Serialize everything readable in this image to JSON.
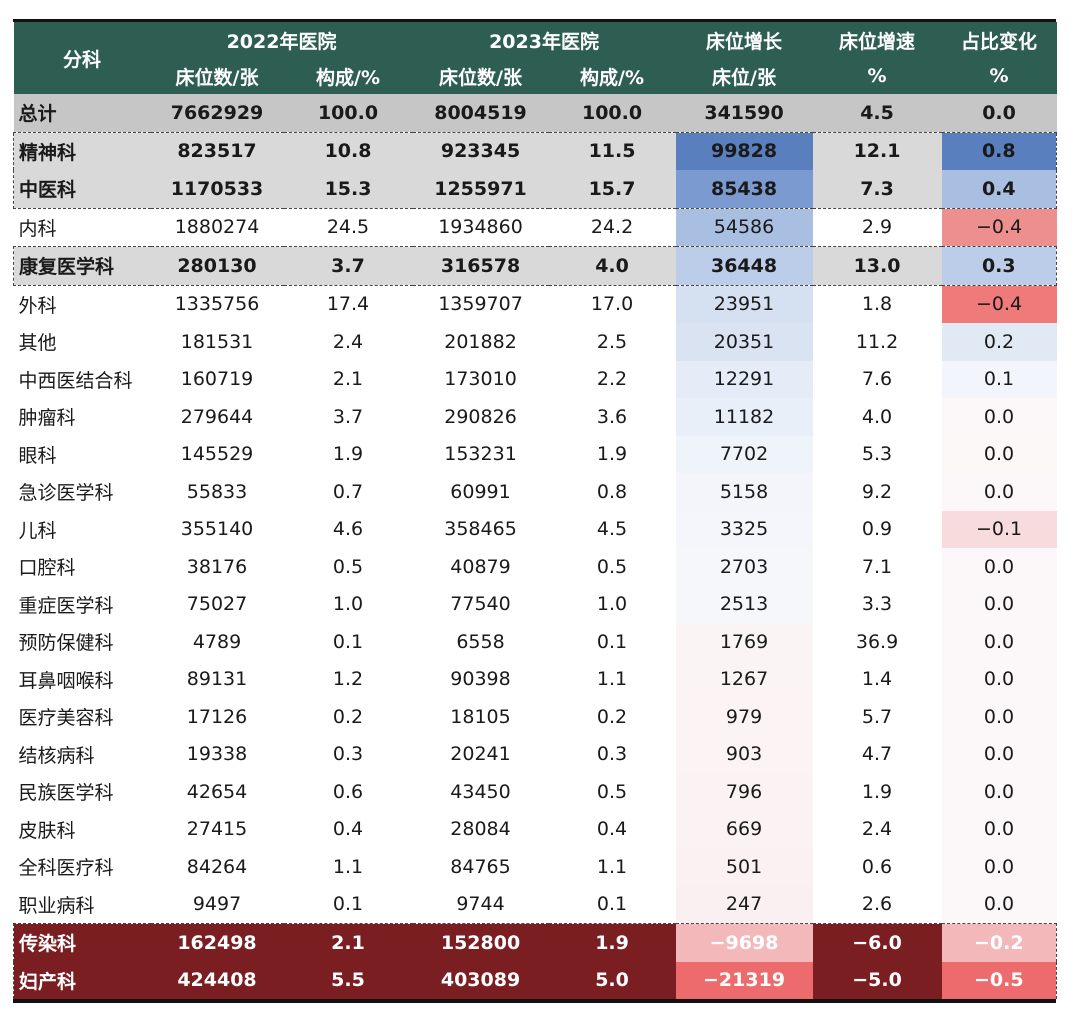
{
  "header": {
    "category": "分科",
    "group_2022": "2022年医院",
    "group_2023": "2023年医院",
    "bed_growth": "床位增长",
    "bed_rate": "床位增速",
    "share_change": "占比变化",
    "sub_beds": "床位数/张",
    "sub_share": "构成/%",
    "sub_bed_unit": "床位/张",
    "sub_pct": "%"
  },
  "rows": [
    {
      "name": "总计",
      "b22": "7662929",
      "s22": "100.0",
      "b23": "8004519",
      "s23": "100.0",
      "growth": "341590",
      "rate": "4.5",
      "change": "0.0",
      "style": "total",
      "growth_color": "#c6c6c6",
      "change_color": "#c6c6c6"
    },
    {
      "name": "精神科",
      "b22": "823517",
      "s22": "10.8",
      "b23": "923345",
      "s23": "11.5",
      "growth": "99828",
      "rate": "12.1",
      "change": "0.8",
      "style": "hl",
      "growth_color": "#5a7fbf",
      "change_color": "#5a7fbf"
    },
    {
      "name": "中医科",
      "b22": "1170533",
      "s22": "15.3",
      "b23": "1255971",
      "s23": "15.7",
      "growth": "85438",
      "rate": "7.3",
      "change": "0.4",
      "style": "hl",
      "growth_color": "#7b9ad0",
      "change_color": "#a9bfe2"
    },
    {
      "name": "内科",
      "b22": "1880274",
      "s22": "24.5",
      "b23": "1934860",
      "s23": "24.2",
      "growth": "54586",
      "rate": "2.9",
      "change": "−0.4",
      "style": "normal",
      "growth_color": "#a9bfe2",
      "change_color": "#ee8f8f"
    },
    {
      "name": "康复医学科",
      "b22": "280130",
      "s22": "3.7",
      "b23": "316578",
      "s23": "4.0",
      "growth": "36448",
      "rate": "13.0",
      "change": "0.3",
      "style": "hl",
      "growth_color": "#bccde9",
      "change_color": "#bccde9"
    },
    {
      "name": "外科",
      "b22": "1335756",
      "s22": "17.4",
      "b23": "1359707",
      "s23": "17.0",
      "growth": "23951",
      "rate": "1.8",
      "change": "−0.4",
      "style": "normal",
      "growth_color": "#d5e0f1",
      "change_color": "#ee7a7a"
    },
    {
      "name": "其他",
      "b22": "181531",
      "s22": "2.4",
      "b23": "201882",
      "s23": "2.5",
      "growth": "20351",
      "rate": "11.2",
      "change": "0.2",
      "style": "normal",
      "growth_color": "#d9e3f2",
      "change_color": "#e1e9f5"
    },
    {
      "name": "中西医结合科",
      "b22": "160719",
      "s22": "2.1",
      "b23": "173010",
      "s23": "2.2",
      "growth": "12291",
      "rate": "7.6",
      "change": "0.1",
      "style": "normal",
      "growth_color": "#e5ecf7",
      "change_color": "#f2f5fb"
    },
    {
      "name": "肿瘤科",
      "b22": "279644",
      "s22": "3.7",
      "b23": "290826",
      "s23": "3.6",
      "growth": "11182",
      "rate": "4.0",
      "change": "0.0",
      "style": "normal",
      "growth_color": "#e9eff8",
      "change_color": "#fcf7f8"
    },
    {
      "name": "眼科",
      "b22": "145529",
      "s22": "1.9",
      "b23": "153231",
      "s23": "1.9",
      "growth": "7702",
      "rate": "5.3",
      "change": "0.0",
      "style": "normal",
      "growth_color": "#eff3fa",
      "change_color": "#fcf8f8"
    },
    {
      "name": "急诊医学科",
      "b22": "55833",
      "s22": "0.7",
      "b23": "60991",
      "s23": "0.8",
      "growth": "5158",
      "rate": "9.2",
      "change": "0.0",
      "style": "normal",
      "growth_color": "#f3f5fb",
      "change_color": "#fcf8f9"
    },
    {
      "name": "儿科",
      "b22": "355140",
      "s22": "4.6",
      "b23": "358465",
      "s23": "4.5",
      "growth": "3325",
      "rate": "0.9",
      "change": "−0.1",
      "style": "normal",
      "growth_color": "#f5f6fb",
      "change_color": "#f8dcdd"
    },
    {
      "name": "口腔科",
      "b22": "38176",
      "s22": "0.5",
      "b23": "40879",
      "s23": "0.5",
      "growth": "2703",
      "rate": "7.1",
      "change": "0.0",
      "style": "normal",
      "growth_color": "#f6f7fb",
      "change_color": "#fcf8f9"
    },
    {
      "name": "重症医学科",
      "b22": "75027",
      "s22": "1.0",
      "b23": "77540",
      "s23": "1.0",
      "growth": "2513",
      "rate": "3.3",
      "change": "0.0",
      "style": "normal",
      "growth_color": "#f6f7fb",
      "change_color": "#fcf8f9"
    },
    {
      "name": "预防保健科",
      "b22": "4789",
      "s22": "0.1",
      "b23": "6558",
      "s23": "0.1",
      "growth": "1769",
      "rate": "36.9",
      "change": "0.0",
      "style": "normal",
      "growth_color": "#faf4f5",
      "change_color": "#fcf8f9"
    },
    {
      "name": "耳鼻咽喉科",
      "b22": "89131",
      "s22": "1.2",
      "b23": "90398",
      "s23": "1.1",
      "growth": "1267",
      "rate": "1.4",
      "change": "0.0",
      "style": "normal",
      "growth_color": "#fbf4f5",
      "change_color": "#fcf8f9"
    },
    {
      "name": "医疗美容科",
      "b22": "17126",
      "s22": "0.2",
      "b23": "18105",
      "s23": "0.2",
      "growth": "979",
      "rate": "5.7",
      "change": "0.0",
      "style": "normal",
      "growth_color": "#fbf3f4",
      "change_color": "#fcf8f9"
    },
    {
      "name": "结核病科",
      "b22": "19338",
      "s22": "0.3",
      "b23": "20241",
      "s23": "0.3",
      "growth": "903",
      "rate": "4.7",
      "change": "0.0",
      "style": "normal",
      "growth_color": "#fbf3f4",
      "change_color": "#fcf8f9"
    },
    {
      "name": "民族医学科",
      "b22": "42654",
      "s22": "0.6",
      "b23": "43450",
      "s23": "0.5",
      "growth": "796",
      "rate": "1.9",
      "change": "0.0",
      "style": "normal",
      "growth_color": "#fbf2f3",
      "change_color": "#fcf8f9"
    },
    {
      "name": "皮肤科",
      "b22": "27415",
      "s22": "0.4",
      "b23": "28084",
      "s23": "0.4",
      "growth": "669",
      "rate": "2.4",
      "change": "0.0",
      "style": "normal",
      "growth_color": "#fbf2f3",
      "change_color": "#fcf8f9"
    },
    {
      "name": "全科医疗科",
      "b22": "84264",
      "s22": "1.1",
      "b23": "84765",
      "s23": "1.1",
      "growth": "501",
      "rate": "0.6",
      "change": "0.0",
      "style": "normal",
      "growth_color": "#fbf1f2",
      "change_color": "#fcf8f9"
    },
    {
      "name": "职业病科",
      "b22": "9497",
      "s22": "0.1",
      "b23": "9744",
      "s23": "0.1",
      "growth": "247",
      "rate": "2.6",
      "change": "0.0",
      "style": "normal",
      "growth_color": "#fbf0f1",
      "change_color": "#fcf8f9"
    },
    {
      "name": "传染科",
      "b22": "162498",
      "s22": "2.1",
      "b23": "152800",
      "s23": "1.9",
      "growth": "−9698",
      "rate": "−6.0",
      "change": "−0.2",
      "style": "red",
      "growth_color": "#f3b9ba",
      "change_color": "#f3b9ba"
    },
    {
      "name": "妇产科",
      "b22": "424408",
      "s22": "5.5",
      "b23": "403089",
      "s23": "5.0",
      "growth": "−21319",
      "rate": "−5.0",
      "change": "−0.5",
      "style": "red",
      "growth_color": "#ee6b6d",
      "change_color": "#ee6b6d"
    }
  ]
}
